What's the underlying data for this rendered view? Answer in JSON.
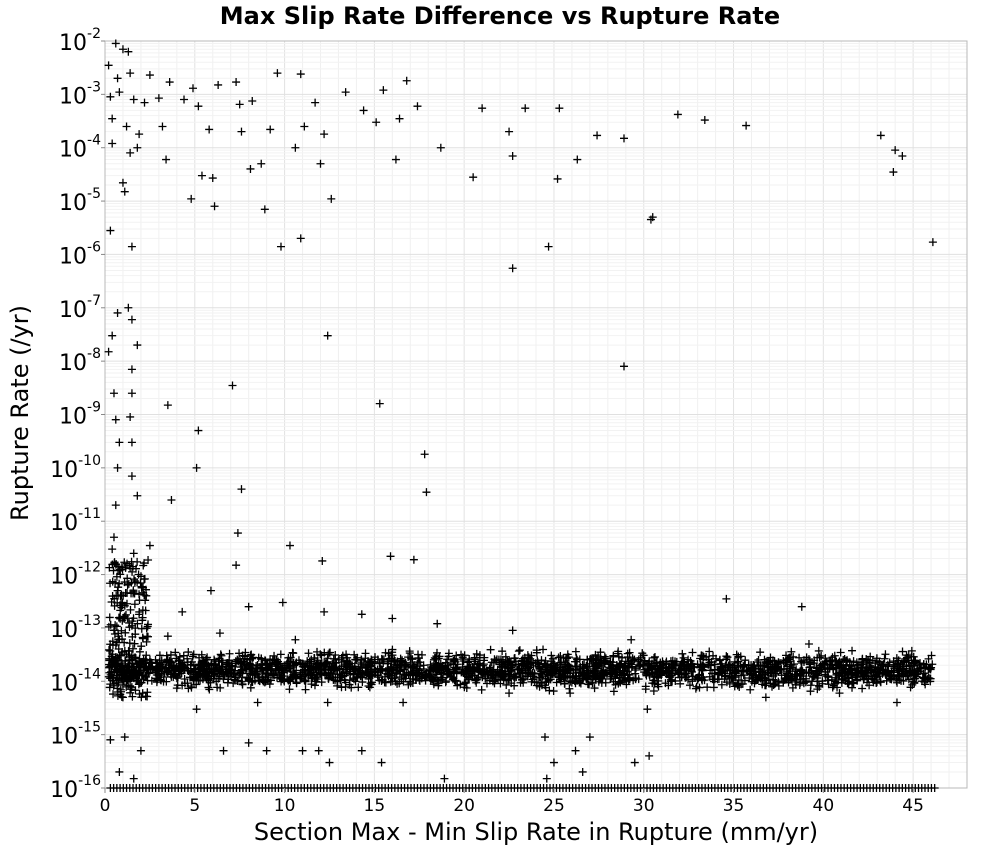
{
  "chart_data": {
    "type": "scatter",
    "title": "Max Slip Rate Difference vs Rupture Rate",
    "xlabel": "Section Max - Min Slip Rate in Rupture (mm/yr)",
    "ylabel": "Rupture Rate (/yr)",
    "x_scale": "linear",
    "y_scale": "log",
    "xlim": [
      0,
      48
    ],
    "ylim": [
      1e-16,
      0.01
    ],
    "x_ticks": [
      "0",
      "5",
      "10",
      "15",
      "20",
      "25",
      "30",
      "35",
      "40",
      "45"
    ],
    "y_ticks": [
      {
        "base": "10",
        "exp": "-16"
      },
      {
        "base": "10",
        "exp": "-15"
      },
      {
        "base": "10",
        "exp": "-14"
      },
      {
        "base": "10",
        "exp": "-13"
      },
      {
        "base": "10",
        "exp": "-12"
      },
      {
        "base": "10",
        "exp": "-11"
      },
      {
        "base": "10",
        "exp": "-10"
      },
      {
        "base": "10",
        "exp": "-9"
      },
      {
        "base": "10",
        "exp": "-8"
      },
      {
        "base": "10",
        "exp": "-7"
      },
      {
        "base": "10",
        "exp": "-6"
      },
      {
        "base": "10",
        "exp": "-5"
      },
      {
        "base": "10",
        "exp": "-4"
      },
      {
        "base": "10",
        "exp": "-3"
      },
      {
        "base": "10",
        "exp": "-2"
      }
    ],
    "grid": true,
    "marker": "plus",
    "marker_color": "#000000",
    "points": [
      [
        0.6,
        0.009
      ],
      [
        1.0,
        0.007
      ],
      [
        1.3,
        0.0063
      ],
      [
        0.2,
        0.0035
      ],
      [
        0.7,
        0.002
      ],
      [
        1.4,
        0.0025
      ],
      [
        2.5,
        0.0023
      ],
      [
        3.6,
        0.0017
      ],
      [
        4.9,
        0.0013
      ],
      [
        6.3,
        0.0015
      ],
      [
        7.3,
        0.0017
      ],
      [
        9.6,
        0.0025
      ],
      [
        10.9,
        0.0024
      ],
      [
        13.4,
        0.0011
      ],
      [
        15.5,
        0.0012
      ],
      [
        16.8,
        0.0018
      ],
      [
        0.3,
        0.0009
      ],
      [
        0.8,
        0.0011
      ],
      [
        1.6,
        0.0008
      ],
      [
        2.2,
        0.0007
      ],
      [
        3.0,
        0.00085
      ],
      [
        4.4,
        0.0008
      ],
      [
        5.2,
        0.0006
      ],
      [
        7.5,
        0.00065
      ],
      [
        8.2,
        0.00075
      ],
      [
        11.7,
        0.0007
      ],
      [
        14.4,
        0.0005
      ],
      [
        17.4,
        0.0006
      ],
      [
        21.0,
        0.00055
      ],
      [
        23.4,
        0.00055
      ],
      [
        25.3,
        0.00055
      ],
      [
        0.4,
        0.00035
      ],
      [
        1.2,
        0.00025
      ],
      [
        1.9,
        0.00018
      ],
      [
        3.2,
        0.00025
      ],
      [
        5.8,
        0.00022
      ],
      [
        7.6,
        0.0002
      ],
      [
        9.2,
        0.00022
      ],
      [
        11.1,
        0.00025
      ],
      [
        12.2,
        0.00018
      ],
      [
        15.1,
        0.0003
      ],
      [
        16.4,
        0.00035
      ],
      [
        22.5,
        0.0002
      ],
      [
        27.4,
        0.00017
      ],
      [
        28.9,
        0.00015
      ],
      [
        31.9,
        0.00042
      ],
      [
        33.4,
        0.00033
      ],
      [
        35.7,
        0.00026
      ],
      [
        43.2,
        0.00017
      ],
      [
        44.0,
        9e-05
      ],
      [
        44.4,
        7e-05
      ],
      [
        0.4,
        0.00012
      ],
      [
        1.4,
        8e-05
      ],
      [
        1.8,
        0.0001
      ],
      [
        3.4,
        6e-05
      ],
      [
        5.4,
        3e-05
      ],
      [
        6.0,
        2.7e-05
      ],
      [
        8.1,
        4e-05
      ],
      [
        8.7,
        5e-05
      ],
      [
        10.6,
        0.0001
      ],
      [
        12.0,
        5e-05
      ],
      [
        16.2,
        6e-05
      ],
      [
        18.7,
        0.0001
      ],
      [
        20.5,
        2.8e-05
      ],
      [
        22.7,
        7e-05
      ],
      [
        25.2,
        2.6e-05
      ],
      [
        26.3,
        6e-05
      ],
      [
        43.9,
        3.5e-05
      ],
      [
        1.0,
        2.2e-05
      ],
      [
        1.1,
        1.5e-05
      ],
      [
        4.8,
        1.1e-05
      ],
      [
        6.1,
        8e-06
      ],
      [
        8.9,
        7e-06
      ],
      [
        12.6,
        1.1e-05
      ],
      [
        30.4,
        4.5e-06
      ],
      [
        30.5,
        5e-06
      ],
      [
        0.3,
        2.8e-06
      ],
      [
        1.5,
        1.4e-06
      ],
      [
        9.8,
        1.4e-06
      ],
      [
        10.9,
        2e-06
      ],
      [
        24.7,
        1.4e-06
      ],
      [
        22.7,
        5.5e-07
      ],
      [
        46.1,
        1.7e-06
      ],
      [
        0.7,
        8e-08
      ],
      [
        1.3,
        1e-07
      ],
      [
        1.5,
        6e-08
      ],
      [
        0.4,
        3e-08
      ],
      [
        1.8,
        2e-08
      ],
      [
        12.4,
        3e-08
      ],
      [
        0.2,
        1.5e-08
      ],
      [
        1.5,
        7e-09
      ],
      [
        28.9,
        8e-09
      ],
      [
        7.1,
        3.5e-09
      ],
      [
        0.5,
        2.5e-09
      ],
      [
        1.5,
        2.5e-09
      ],
      [
        3.5,
        1.5e-09
      ],
      [
        15.3,
        1.6e-09
      ],
      [
        0.6,
        8e-10
      ],
      [
        1.4,
        9e-10
      ],
      [
        5.2,
        5e-10
      ],
      [
        0.8,
        3e-10
      ],
      [
        1.5,
        3e-10
      ],
      [
        17.8,
        1.8e-10
      ],
      [
        0.7,
        1e-10
      ],
      [
        1.5,
        7e-11
      ],
      [
        5.1,
        1e-10
      ],
      [
        7.6,
        4e-11
      ],
      [
        17.9,
        3.5e-11
      ],
      [
        0.6,
        2e-11
      ],
      [
        1.8,
        3e-11
      ],
      [
        3.7,
        2.5e-11
      ],
      [
        7.4,
        6e-12
      ],
      [
        0.5,
        5e-12
      ],
      [
        10.3,
        3.5e-12
      ],
      [
        0.4,
        3e-12
      ],
      [
        1.6,
        2.5e-12
      ],
      [
        2.5,
        3.5e-12
      ],
      [
        12.1,
        1.8e-12
      ],
      [
        15.9,
        2.2e-12
      ],
      [
        17.2,
        1.9e-12
      ],
      [
        7.3,
        1.5e-12
      ],
      [
        0.8,
        1.2e-12
      ],
      [
        1.4,
        1.3e-12
      ],
      [
        0.7,
        5e-13
      ],
      [
        2.3,
        4e-13
      ],
      [
        5.9,
        5e-13
      ],
      [
        4.3,
        2e-13
      ],
      [
        8.0,
        2.5e-13
      ],
      [
        9.9,
        3e-13
      ],
      [
        12.2,
        2e-13
      ],
      [
        14.3,
        1.8e-13
      ],
      [
        16.0,
        1.5e-13
      ],
      [
        18.5,
        1.2e-13
      ],
      [
        34.6,
        3.5e-13
      ],
      [
        38.8,
        2.5e-13
      ],
      [
        0.5,
        9e-14
      ],
      [
        3.5,
        7e-14
      ],
      [
        6.4,
        8e-14
      ],
      [
        10.6,
        6e-14
      ],
      [
        22.7,
        9e-14
      ],
      [
        29.3,
        6e-14
      ],
      [
        39.2,
        5e-14
      ],
      [
        0.4,
        2e-14
      ],
      [
        2.2,
        1.8e-14
      ],
      [
        4.1,
        2.5e-14
      ],
      [
        6.8,
        2.2e-14
      ],
      [
        9.5,
        1.7e-14
      ],
      [
        12.0,
        2.1e-14
      ],
      [
        14.5,
        1.5e-14
      ],
      [
        17.0,
        2.2e-14
      ],
      [
        19.5,
        1.8e-14
      ],
      [
        22.5,
        2.3e-14
      ],
      [
        25.0,
        1.6e-14
      ],
      [
        27.5,
        2.1e-14
      ],
      [
        30.4,
        1.8e-14
      ],
      [
        33.2,
        1.9e-14
      ],
      [
        36.0,
        1.7e-14
      ],
      [
        38.8,
        2.2e-14
      ],
      [
        41.6,
        1.6e-14
      ],
      [
        44.3,
        2.1e-14
      ],
      [
        46.0,
        1.8e-14
      ],
      [
        1.2,
        1.1e-14
      ],
      [
        3.8,
        1.2e-14
      ],
      [
        6.6,
        1.1e-14
      ],
      [
        9.1,
        1.2e-14
      ],
      [
        11.8,
        1.1e-14
      ],
      [
        15.2,
        1.2e-14
      ],
      [
        18.8,
        1.1e-14
      ],
      [
        22.9,
        1.2e-14
      ],
      [
        26.8,
        1.1e-14
      ],
      [
        30.6,
        1.2e-14
      ],
      [
        34.5,
        1.1e-14
      ],
      [
        38.2,
        1.2e-14
      ],
      [
        42.5,
        1.1e-14
      ],
      [
        45.8,
        1.1e-14
      ],
      [
        1.0,
        5e-15
      ],
      [
        5.1,
        3e-15
      ],
      [
        8.5,
        4e-15
      ],
      [
        12.4,
        4e-15
      ],
      [
        16.6,
        4e-15
      ],
      [
        22.5,
        6e-15
      ],
      [
        25.9,
        6e-15
      ],
      [
        30.2,
        3e-15
      ],
      [
        36.8,
        5e-15
      ],
      [
        40.9,
        6e-15
      ],
      [
        44.1,
        4e-15
      ],
      [
        0.3,
        8e-16
      ],
      [
        1.1,
        9e-16
      ],
      [
        2.0,
        5e-16
      ],
      [
        6.6,
        5e-16
      ],
      [
        8.0,
        7e-16
      ],
      [
        9.0,
        5e-16
      ],
      [
        11.0,
        5e-16
      ],
      [
        11.9,
        5e-16
      ],
      [
        12.5,
        3e-16
      ],
      [
        14.3,
        5e-16
      ],
      [
        24.5,
        9e-16
      ],
      [
        26.2,
        5e-16
      ],
      [
        27.0,
        9e-16
      ],
      [
        30.3,
        4e-16
      ],
      [
        0.8,
        2e-16
      ],
      [
        1.6,
        1.5e-16
      ],
      [
        15.4,
        3e-16
      ],
      [
        18.9,
        1.5e-16
      ],
      [
        24.6,
        1.5e-16
      ],
      [
        25.0,
        3e-16
      ],
      [
        26.6,
        2e-16
      ],
      [
        29.5,
        3e-16
      ]
    ],
    "band_points_note": "",
    "floor_value": 1e-16
  }
}
